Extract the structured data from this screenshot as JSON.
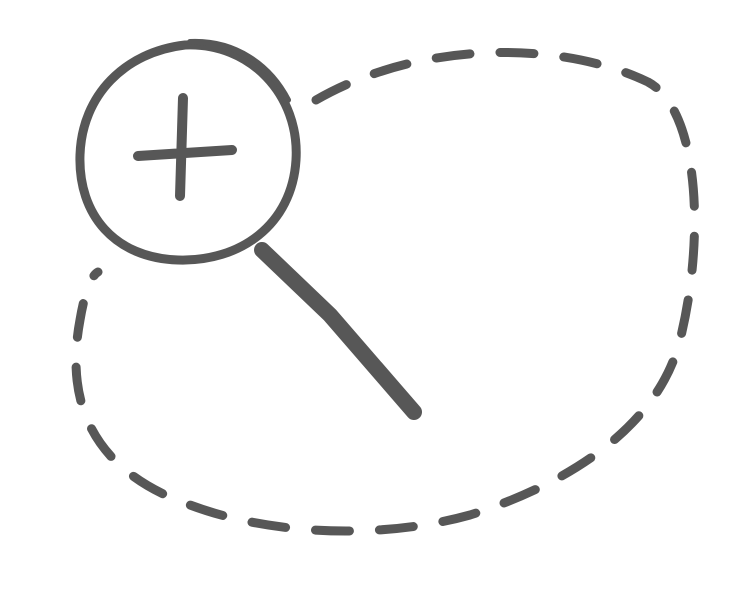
{
  "illustration": {
    "icon_name": "zoom-in-lasso-icon",
    "stroke_color": "#575757",
    "background_color": "#ffffff"
  }
}
